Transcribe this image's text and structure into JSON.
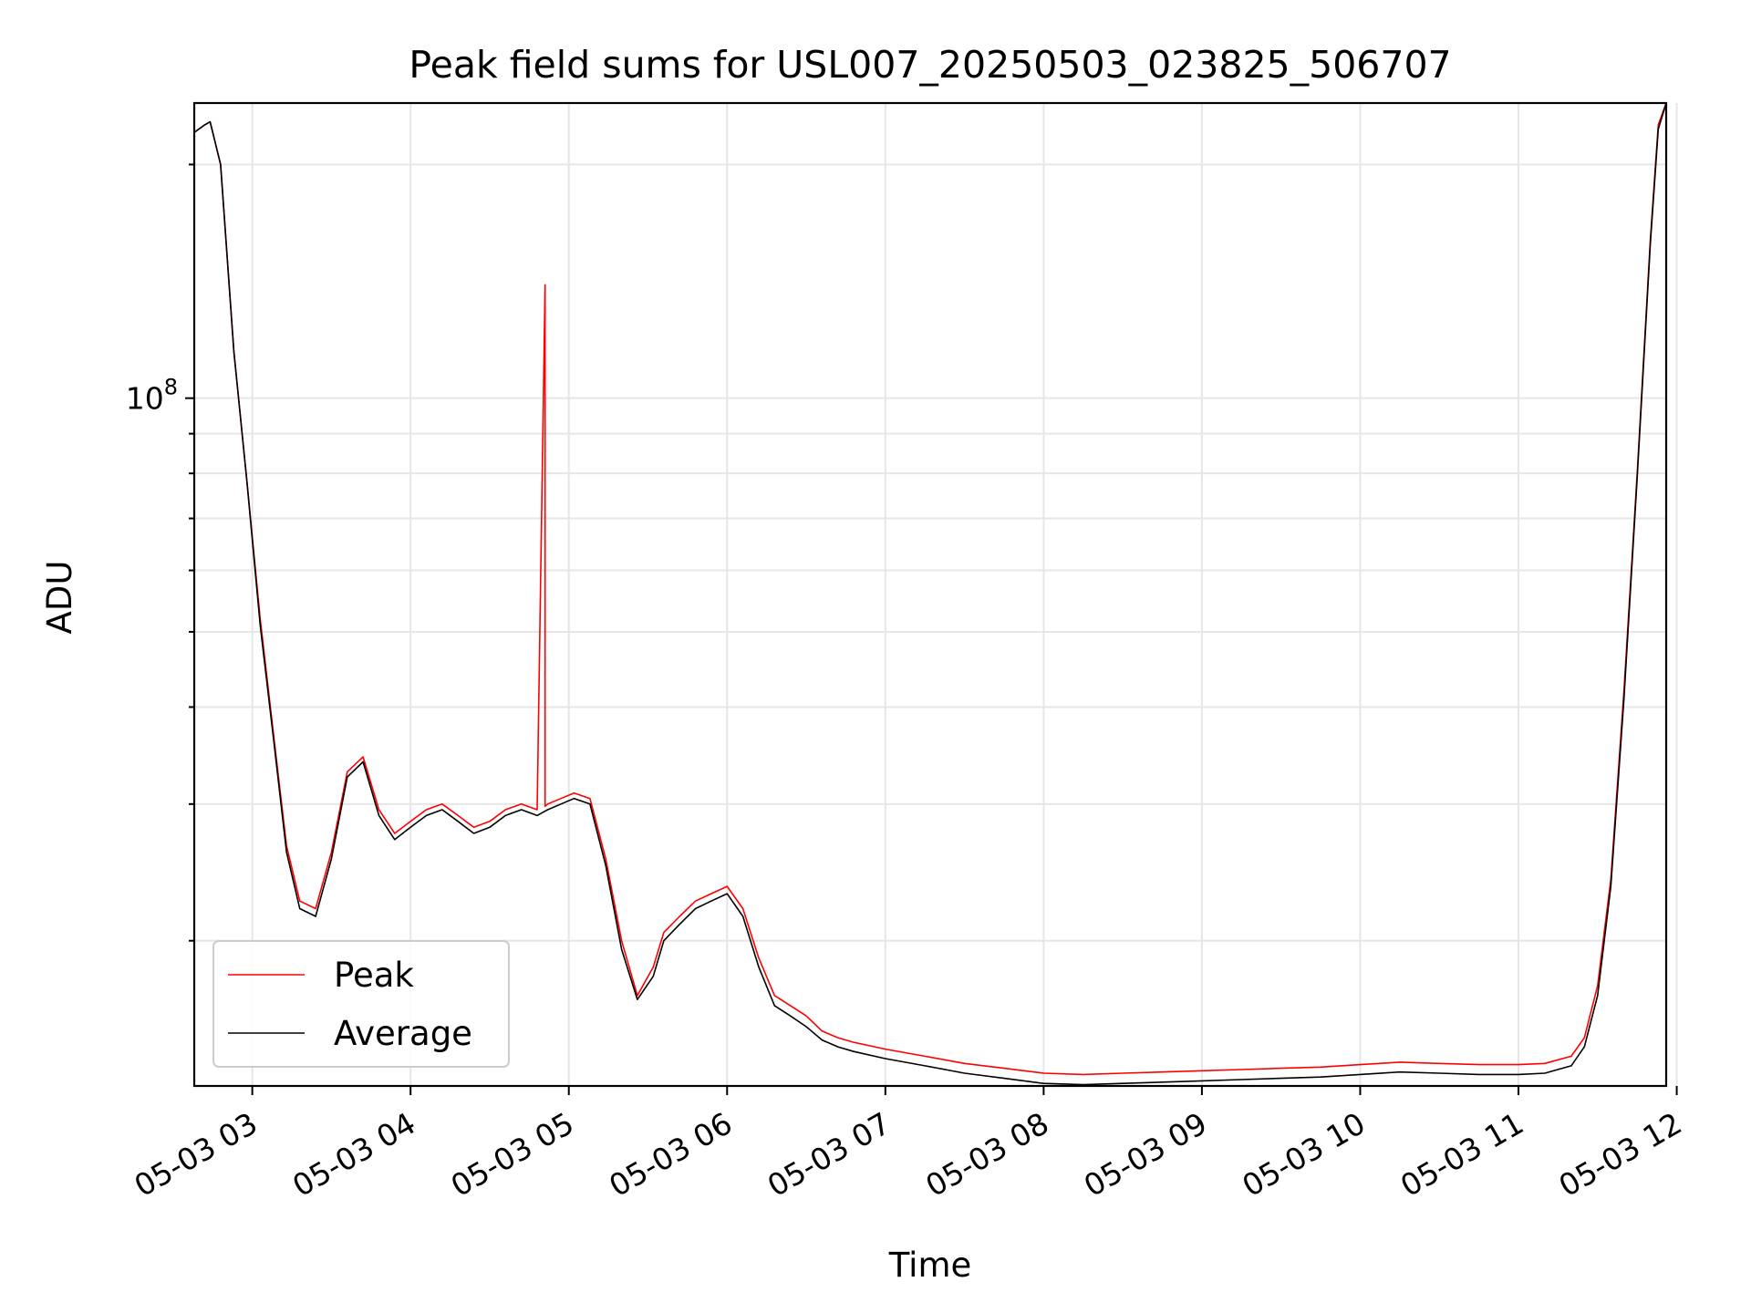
{
  "chart_data": {
    "type": "line",
    "title": "Peak field sums for USL007_20250503_023825_506707",
    "xlabel": "Time",
    "ylabel": "ADU",
    "x_ticks": [
      "05-03 03",
      "05-03 04",
      "05-03 05",
      "05-03 06",
      "05-03 07",
      "05-03 08",
      "05-03 09",
      "05-03 10",
      "05-03 11",
      "05-03 12"
    ],
    "y_ticks": [
      {
        "value": 100000000,
        "base": "10",
        "exponent": "8"
      }
    ],
    "yscale": "log",
    "xlim": [
      "2025-05-03 02:38",
      "2025-05-03 11:56"
    ],
    "ylim": [
      13000000,
      240000000
    ],
    "grid": true,
    "legend": {
      "position": "lower left",
      "entries": [
        {
          "label": "Peak",
          "color": "#ff0000"
        },
        {
          "label": "Average",
          "color": "#000000"
        }
      ]
    },
    "series": [
      {
        "name": "Peak",
        "color": "#ff0000",
        "x": [
          "2025-05-03 02:38",
          "2025-05-03 02:42",
          "2025-05-03 02:44",
          "2025-05-03 02:48",
          "2025-05-03 02:53",
          "2025-05-03 02:58",
          "2025-05-03 03:03",
          "2025-05-03 03:08",
          "2025-05-03 03:13",
          "2025-05-03 03:18",
          "2025-05-03 03:24",
          "2025-05-03 03:30",
          "2025-05-03 03:36",
          "2025-05-03 03:42",
          "2025-05-03 03:48",
          "2025-05-03 03:54",
          "2025-05-03 04:00",
          "2025-05-03 04:06",
          "2025-05-03 04:12",
          "2025-05-03 04:18",
          "2025-05-03 04:24",
          "2025-05-03 04:30",
          "2025-05-03 04:36",
          "2025-05-03 04:42",
          "2025-05-03 04:48",
          "2025-05-03 04:51",
          "2025-05-03 04:51",
          "2025-05-03 04:52",
          "2025-05-03 04:57",
          "2025-05-03 05:02",
          "2025-05-03 05:08",
          "2025-05-03 05:14",
          "2025-05-03 05:20",
          "2025-05-03 05:26",
          "2025-05-03 05:32",
          "2025-05-03 05:36",
          "2025-05-03 05:42",
          "2025-05-03 05:48",
          "2025-05-03 05:54",
          "2025-05-03 06:00",
          "2025-05-03 06:06",
          "2025-05-03 06:12",
          "2025-05-03 06:18",
          "2025-05-03 06:24",
          "2025-05-03 06:30",
          "2025-05-03 06:36",
          "2025-05-03 06:42",
          "2025-05-03 06:48",
          "2025-05-03 07:00",
          "2025-05-03 07:15",
          "2025-05-03 07:30",
          "2025-05-03 07:45",
          "2025-05-03 08:00",
          "2025-05-03 08:15",
          "2025-05-03 08:30",
          "2025-05-03 08:45",
          "2025-05-03 09:00",
          "2025-05-03 09:15",
          "2025-05-03 09:30",
          "2025-05-03 09:45",
          "2025-05-03 10:00",
          "2025-05-03 10:15",
          "2025-05-03 10:30",
          "2025-05-03 10:45",
          "2025-05-03 11:00",
          "2025-05-03 11:10",
          "2025-05-03 11:20",
          "2025-05-03 11:25",
          "2025-05-03 11:30",
          "2025-05-03 11:35",
          "2025-05-03 11:40",
          "2025-05-03 11:45",
          "2025-05-03 11:50",
          "2025-05-03 11:53",
          "2025-05-03 11:56"
        ],
        "values": [
          220000000,
          225000000,
          227000000,
          200000000,
          115000000,
          78000000,
          52000000,
          37000000,
          26500000,
          22500000,
          22000000,
          26000000,
          33000000,
          34500000,
          29500000,
          27500000,
          28500000,
          29500000,
          30000000,
          29000000,
          28000000,
          28500000,
          29500000,
          30000000,
          29500000,
          140000000,
          29800000,
          30000000,
          30500000,
          31000000,
          30500000,
          25500000,
          20000000,
          17000000,
          18500000,
          20500000,
          21500000,
          22500000,
          23000000,
          23500000,
          22000000,
          19000000,
          17000000,
          16500000,
          16000000,
          15300000,
          15000000,
          14800000,
          14500000,
          14200000,
          13900000,
          13700000,
          13500000,
          13450000,
          13500000,
          13550000,
          13600000,
          13650000,
          13700000,
          13750000,
          13850000,
          13950000,
          13900000,
          13850000,
          13850000,
          13900000,
          14200000,
          15000000,
          17500000,
          24000000,
          42000000,
          80000000,
          160000000,
          225000000,
          240000000
        ]
      },
      {
        "name": "Average",
        "color": "#000000",
        "x": [
          "2025-05-03 02:38",
          "2025-05-03 02:42",
          "2025-05-03 02:44",
          "2025-05-03 02:48",
          "2025-05-03 02:53",
          "2025-05-03 02:58",
          "2025-05-03 03:03",
          "2025-05-03 03:08",
          "2025-05-03 03:13",
          "2025-05-03 03:18",
          "2025-05-03 03:24",
          "2025-05-03 03:30",
          "2025-05-03 03:36",
          "2025-05-03 03:42",
          "2025-05-03 03:48",
          "2025-05-03 03:54",
          "2025-05-03 04:00",
          "2025-05-03 04:06",
          "2025-05-03 04:12",
          "2025-05-03 04:18",
          "2025-05-03 04:24",
          "2025-05-03 04:30",
          "2025-05-03 04:36",
          "2025-05-03 04:42",
          "2025-05-03 04:48",
          "2025-05-03 04:52",
          "2025-05-03 04:57",
          "2025-05-03 05:02",
          "2025-05-03 05:08",
          "2025-05-03 05:14",
          "2025-05-03 05:20",
          "2025-05-03 05:26",
          "2025-05-03 05:32",
          "2025-05-03 05:36",
          "2025-05-03 05:42",
          "2025-05-03 05:48",
          "2025-05-03 05:54",
          "2025-05-03 06:00",
          "2025-05-03 06:06",
          "2025-05-03 06:12",
          "2025-05-03 06:18",
          "2025-05-03 06:24",
          "2025-05-03 06:30",
          "2025-05-03 06:36",
          "2025-05-03 06:42",
          "2025-05-03 06:48",
          "2025-05-03 07:00",
          "2025-05-03 07:15",
          "2025-05-03 07:30",
          "2025-05-03 07:45",
          "2025-05-03 08:00",
          "2025-05-03 08:15",
          "2025-05-03 08:30",
          "2025-05-03 08:45",
          "2025-05-03 09:00",
          "2025-05-03 09:15",
          "2025-05-03 09:30",
          "2025-05-03 09:45",
          "2025-05-03 10:00",
          "2025-05-03 10:15",
          "2025-05-03 10:30",
          "2025-05-03 10:45",
          "2025-05-03 11:00",
          "2025-05-03 11:10",
          "2025-05-03 11:20",
          "2025-05-03 11:25",
          "2025-05-03 11:30",
          "2025-05-03 11:35",
          "2025-05-03 11:40",
          "2025-05-03 11:45",
          "2025-05-03 11:50",
          "2025-05-03 11:53",
          "2025-05-03 11:56"
        ],
        "values": [
          220000000,
          225000000,
          227000000,
          200000000,
          115000000,
          78000000,
          51000000,
          36500000,
          26000000,
          22000000,
          21500000,
          25500000,
          32500000,
          34000000,
          29000000,
          27000000,
          28000000,
          29000000,
          29500000,
          28500000,
          27500000,
          28000000,
          29000000,
          29500000,
          29000000,
          29500000,
          30000000,
          30500000,
          30000000,
          25000000,
          19500000,
          16800000,
          18000000,
          20000000,
          21000000,
          22000000,
          22500000,
          23000000,
          21500000,
          18500000,
          16500000,
          16000000,
          15500000,
          14900000,
          14600000,
          14400000,
          14100000,
          13800000,
          13500000,
          13300000,
          13100000,
          13050000,
          13100000,
          13150000,
          13200000,
          13250000,
          13300000,
          13350000,
          13450000,
          13550000,
          13500000,
          13450000,
          13450000,
          13500000,
          13800000,
          14600000,
          17000000,
          23500000,
          41000000,
          79000000,
          158000000,
          222000000,
          240000000
        ]
      }
    ]
  }
}
